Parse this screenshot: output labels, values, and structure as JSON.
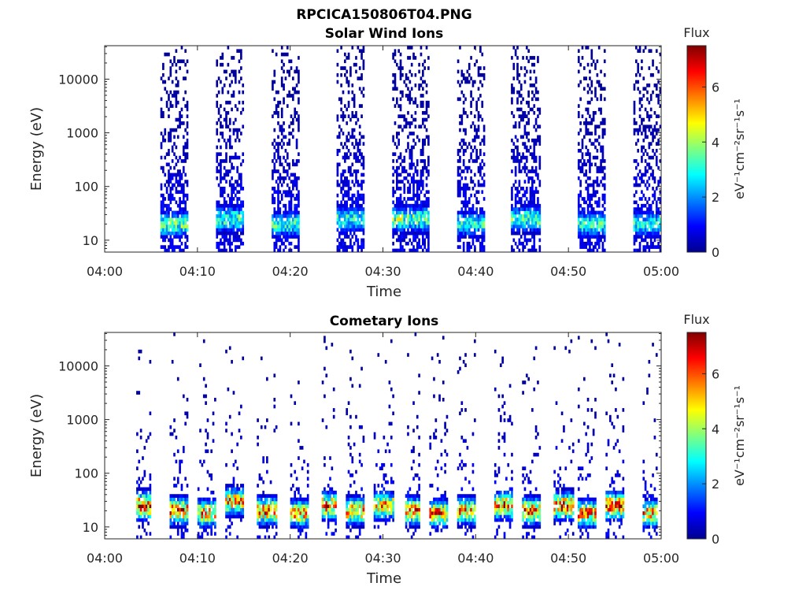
{
  "figure": {
    "title": "RPCICA150806T04.PNG"
  },
  "chart_data": [
    {
      "type": "heatmap",
      "title": "Solar Wind Ions",
      "xlabel": "Time",
      "ylabel": "Energy (eV)",
      "xlim": [
        "04:00",
        "05:00"
      ],
      "ylim": [
        6,
        42000
      ],
      "yscale": "log",
      "xticks": [
        "04:00",
        "04:10",
        "04:20",
        "04:30",
        "04:40",
        "04:50",
        "05:00"
      ],
      "yticks": [
        "10",
        "100",
        "1000",
        "10000"
      ],
      "grid": false,
      "colorbar": {
        "label_title": "Flux",
        "label_unit": "eV⁻¹cm⁻²sr⁻¹s⁻¹",
        "range": [
          0,
          7.5
        ],
        "ticks": [
          "0",
          "2",
          "4",
          "6"
        ],
        "colormap": "jet"
      },
      "bursts": [
        {
          "start": "04:06",
          "end": "04:09",
          "peak_energy_eV": 20,
          "peak_flux": 4.0
        },
        {
          "start": "04:12",
          "end": "04:15",
          "peak_energy_eV": 25,
          "peak_flux": 3.8
        },
        {
          "start": "04:18",
          "end": "04:21",
          "peak_energy_eV": 20,
          "peak_flux": 3.6
        },
        {
          "start": "04:25",
          "end": "04:28",
          "peak_energy_eV": 25,
          "peak_flux": 3.6
        },
        {
          "start": "04:31",
          "end": "04:35",
          "peak_energy_eV": 25,
          "peak_flux": 4.2
        },
        {
          "start": "04:38",
          "end": "04:41",
          "peak_energy_eV": 20,
          "peak_flux": 3.4
        },
        {
          "start": "04:44",
          "end": "04:47",
          "peak_energy_eV": 25,
          "peak_flux": 3.9
        },
        {
          "start": "04:51",
          "end": "04:54",
          "peak_energy_eV": 20,
          "peak_flux": 3.6
        },
        {
          "start": "04:57",
          "end": "05:00",
          "peak_energy_eV": 20,
          "peak_flux": 3.4
        }
      ]
    },
    {
      "type": "heatmap",
      "title": "Cometary Ions",
      "xlabel": "Time",
      "ylabel": "Energy (eV)",
      "xlim": [
        "04:00",
        "05:00"
      ],
      "ylim": [
        6,
        42000
      ],
      "yscale": "log",
      "xticks": [
        "04:00",
        "04:10",
        "04:20",
        "04:30",
        "04:40",
        "04:50",
        "05:00"
      ],
      "yticks": [
        "10",
        "100",
        "1000",
        "10000"
      ],
      "grid": false,
      "colorbar": {
        "label_title": "Flux",
        "label_unit": "eV⁻¹cm⁻²sr⁻¹s⁻¹",
        "range": [
          0,
          7.5
        ],
        "ticks": [
          "0",
          "2",
          "4",
          "6"
        ],
        "colormap": "jet"
      },
      "bursts": [
        {
          "start": "04:03.5",
          "end": "04:05",
          "peak_energy_eV": 25,
          "peak_flux": 7.2
        },
        {
          "start": "04:07",
          "end": "04:09",
          "peak_energy_eV": 20,
          "peak_flux": 6.6
        },
        {
          "start": "04:10",
          "end": "04:12",
          "peak_energy_eV": 18,
          "peak_flux": 6.2
        },
        {
          "start": "04:13",
          "end": "04:15",
          "peak_energy_eV": 30,
          "peak_flux": 6.0
        },
        {
          "start": "04:16.5",
          "end": "04:18.5",
          "peak_energy_eV": 20,
          "peak_flux": 6.8
        },
        {
          "start": "04:20",
          "end": "04:22",
          "peak_energy_eV": 18,
          "peak_flux": 6.0
        },
        {
          "start": "04:23.5",
          "end": "04:25",
          "peak_energy_eV": 25,
          "peak_flux": 6.4
        },
        {
          "start": "04:26",
          "end": "04:28",
          "peak_energy_eV": 20,
          "peak_flux": 6.2
        },
        {
          "start": "04:29",
          "end": "04:31",
          "peak_energy_eV": 25,
          "peak_flux": 6.0
        },
        {
          "start": "04:32.5",
          "end": "04:34",
          "peak_energy_eV": 20,
          "peak_flux": 6.9
        },
        {
          "start": "04:35",
          "end": "04:37",
          "peak_energy_eV": 18,
          "peak_flux": 6.5
        },
        {
          "start": "04:38",
          "end": "04:40",
          "peak_energy_eV": 20,
          "peak_flux": 6.1
        },
        {
          "start": "04:42",
          "end": "04:44",
          "peak_energy_eV": 25,
          "peak_flux": 6.6
        },
        {
          "start": "04:45",
          "end": "04:47",
          "peak_energy_eV": 20,
          "peak_flux": 6.7
        },
        {
          "start": "04:48.5",
          "end": "04:50.5",
          "peak_energy_eV": 25,
          "peak_flux": 7.1
        },
        {
          "start": "04:51",
          "end": "04:53",
          "peak_energy_eV": 18,
          "peak_flux": 6.4
        },
        {
          "start": "04:54",
          "end": "04:56",
          "peak_energy_eV": 25,
          "peak_flux": 6.9
        },
        {
          "start": "04:58",
          "end": "04:59.5",
          "peak_energy_eV": 18,
          "peak_flux": 6.0
        }
      ]
    }
  ]
}
